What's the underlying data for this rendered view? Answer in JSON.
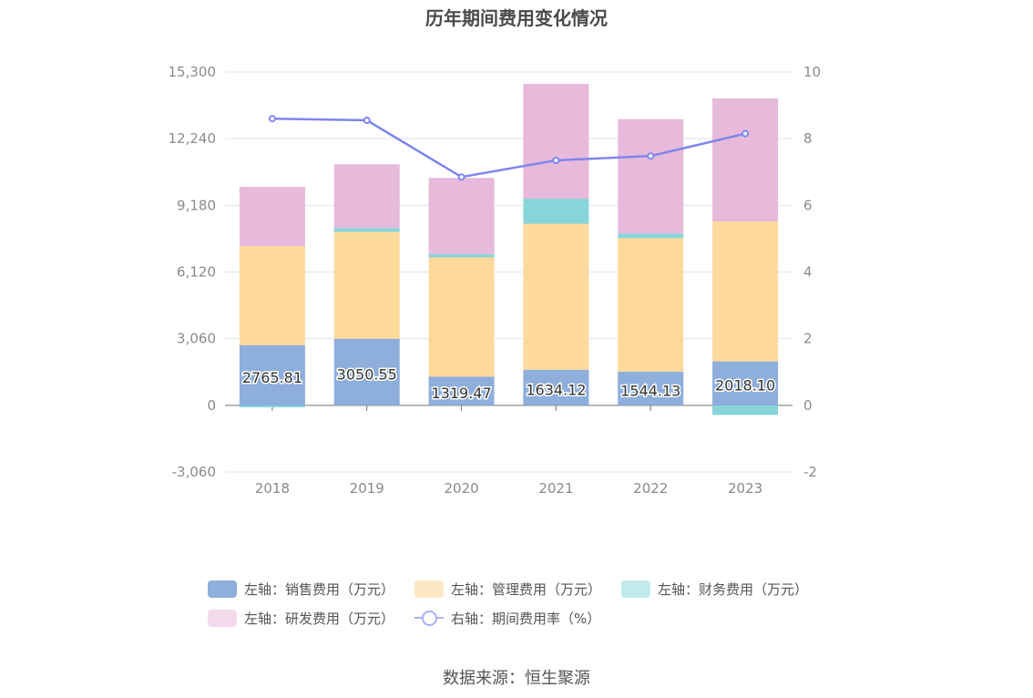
{
  "chart_data": {
    "type": "bar",
    "title": "历年期间费用变化情况",
    "categories": [
      "2018",
      "2019",
      "2020",
      "2021",
      "2022",
      "2023"
    ],
    "series": [
      {
        "name": "左轴：销售费用（万元）",
        "axis": "left",
        "kind": "stacked-bar",
        "color": "#8eaedc",
        "values": [
          2765.81,
          3050.55,
          1319.47,
          1634.12,
          1544.13,
          2018.1
        ],
        "labels": [
          "2765.81",
          "3050.55",
          "1319.47",
          "1634.12",
          "1544.13",
          "2018.10"
        ]
      },
      {
        "name": "左轴：管理费用（万元）",
        "axis": "left",
        "kind": "stacked-bar",
        "color": "#fed99c",
        "values": [
          4540,
          4910,
          5470,
          6700,
          6130,
          6420
        ]
      },
      {
        "name": "左轴：财务费用（万元）",
        "axis": "left",
        "kind": "stacked-bar",
        "color": "#88d5d9",
        "values": [
          -90,
          180,
          150,
          1150,
          210,
          -440
        ]
      },
      {
        "name": "左轴：研发费用（万元）",
        "axis": "left",
        "kind": "stacked-bar",
        "color": "#e7b9da",
        "values": [
          2720,
          2920,
          3500,
          5270,
          5250,
          5650
        ]
      },
      {
        "name": "右轴：期间费用率（%）",
        "axis": "right",
        "kind": "line",
        "color": "#7e85ee",
        "values": [
          8.6,
          8.55,
          6.85,
          7.35,
          7.48,
          8.15
        ]
      }
    ],
    "left_axis": {
      "min": -3060,
      "max": 15300,
      "ticks": [
        -3060,
        0,
        3060,
        6120,
        9180,
        12240,
        15300
      ],
      "tick_labels": [
        "-3,060",
        "0",
        "3,060",
        "6,120",
        "9,180",
        "12,240",
        "15,300"
      ]
    },
    "right_axis": {
      "min": -2,
      "max": 10,
      "ticks": [
        -2,
        0,
        2,
        4,
        6,
        8,
        10
      ],
      "tick_labels": [
        "-2",
        "0",
        "2",
        "4",
        "6",
        "8",
        "10"
      ]
    },
    "grid": true,
    "legend_position": "bottom"
  },
  "legend": {
    "items": [
      {
        "label": "左轴：销售费用（万元）",
        "color": "#8eaedc",
        "style": "swatch"
      },
      {
        "label": "左轴：管理费用（万元）",
        "color": "#fee8c4",
        "style": "swatch"
      },
      {
        "label": "左轴：财务费用（万元）",
        "color": "#c3eaec",
        "style": "swatch"
      },
      {
        "label": "左轴：研发费用（万元）",
        "color": "#f2daeb",
        "style": "swatch"
      },
      {
        "label": "右轴：期间费用率（%）",
        "color": "#a8b0f5",
        "style": "line"
      }
    ]
  },
  "source": "数据来源：恒生聚源"
}
